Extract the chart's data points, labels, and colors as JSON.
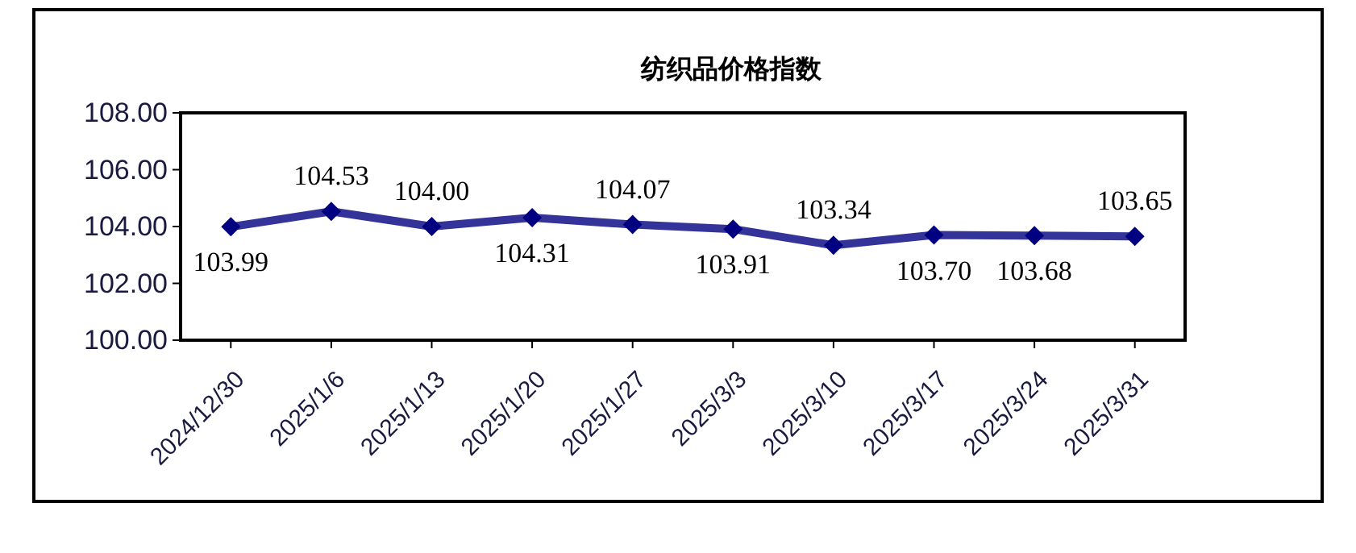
{
  "chart_data": {
    "type": "line",
    "title": "纺织品价格指数",
    "categories": [
      "2024/12/30",
      "2025/1/6",
      "2025/1/13",
      "2025/1/20",
      "2025/1/27",
      "2025/3/3",
      "2025/3/10",
      "2025/3/17",
      "2025/3/24",
      "2025/3/31"
    ],
    "series": [
      {
        "color": "#333399",
        "values": [
          103.99,
          104.53,
          104.0,
          104.31,
          104.07,
          103.91,
          103.34,
          103.7,
          103.68,
          103.65
        ],
        "value_labels": [
          "103.99",
          "104.53",
          "104.00",
          "104.31",
          "104.07",
          "103.91",
          "103.34",
          "103.70",
          "103.68",
          "103.65"
        ]
      }
    ],
    "ylim": [
      100,
      108
    ],
    "yticks": [
      {
        "value": 100,
        "label": "100.00"
      },
      {
        "value": 102,
        "label": "102.00"
      },
      {
        "value": 104,
        "label": "104.00"
      },
      {
        "value": 106,
        "label": "106.00"
      },
      {
        "value": 108,
        "label": "108.00"
      }
    ],
    "marker": "diamond",
    "line_style": "solid",
    "grid": false
  }
}
